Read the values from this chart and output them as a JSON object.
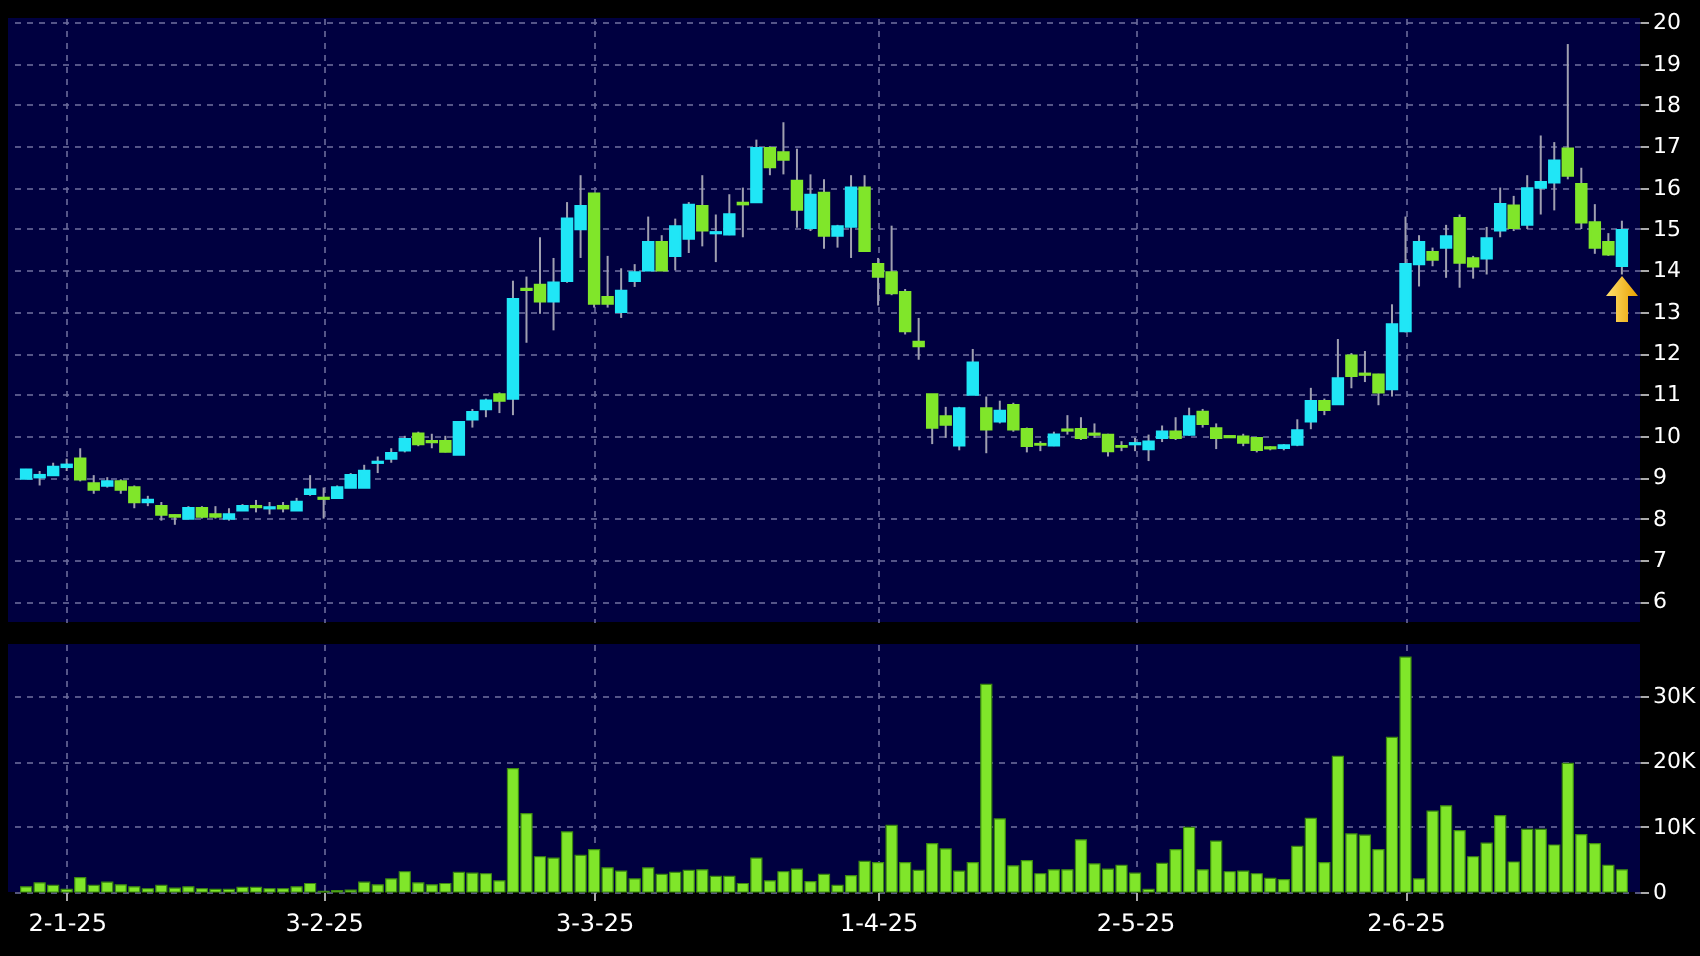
{
  "chart_data": [
    {
      "type": "candlestick",
      "grid": true,
      "tick_labels": "y",
      "ylim": [
        5.5,
        20.1
      ],
      "yticks": [
        6,
        7,
        8,
        9,
        10,
        11,
        12,
        13,
        14,
        15,
        16,
        17,
        18,
        19,
        20
      ],
      "categories": [
        null,
        null,
        null,
        null,
        null,
        null,
        null,
        null,
        null,
        null,
        null,
        null,
        null,
        null,
        null,
        null,
        null,
        null,
        null,
        null,
        null,
        null,
        null,
        null,
        null,
        null,
        null,
        null,
        null,
        null,
        null,
        null,
        null,
        null,
        null,
        null,
        null,
        null,
        null,
        null,
        null,
        null,
        null,
        null,
        null,
        null,
        null,
        null,
        null,
        null,
        null,
        null,
        null,
        null,
        null,
        null,
        null,
        null,
        null,
        null,
        null,
        null,
        null,
        null,
        null,
        null,
        null,
        null,
        null,
        null,
        null,
        null,
        null,
        null,
        null,
        null,
        null,
        null,
        null,
        null,
        null,
        null,
        null,
        null,
        null,
        null,
        null,
        null,
        null,
        null,
        null,
        null,
        null,
        null,
        null,
        null,
        null,
        null,
        null,
        null,
        null,
        null,
        null,
        null,
        null,
        null,
        null,
        null,
        null,
        null,
        null,
        null,
        null,
        null,
        null,
        null,
        null,
        null,
        null
      ],
      "ohlc": [
        [
          8.97,
          9.2,
          8.95,
          9.18
        ],
        [
          9.0,
          9.15,
          8.8,
          9.05
        ],
        [
          9.05,
          9.35,
          9.05,
          9.25
        ],
        [
          9.25,
          9.45,
          9.15,
          9.3
        ],
        [
          9.45,
          9.7,
          8.9,
          8.95
        ],
        [
          8.85,
          9.05,
          8.6,
          8.7
        ],
        [
          8.8,
          9.0,
          8.75,
          8.9
        ],
        [
          8.9,
          8.95,
          8.6,
          8.7
        ],
        [
          8.75,
          8.8,
          8.25,
          8.4
        ],
        [
          8.4,
          8.55,
          8.3,
          8.45
        ],
        [
          8.3,
          8.4,
          7.95,
          8.1
        ],
        [
          8.08,
          8.1,
          7.85,
          8.05
        ],
        [
          8.0,
          8.3,
          8.0,
          8.25
        ],
        [
          8.25,
          8.3,
          8.0,
          8.05
        ],
        [
          8.1,
          8.3,
          8.0,
          8.05
        ],
        [
          8.0,
          8.25,
          7.95,
          8.1
        ],
        [
          8.2,
          8.35,
          8.2,
          8.3
        ],
        [
          8.3,
          8.45,
          8.15,
          8.28
        ],
        [
          8.25,
          8.4,
          8.1,
          8.27
        ],
        [
          8.3,
          8.4,
          8.15,
          8.25
        ],
        [
          8.2,
          8.5,
          8.2,
          8.4
        ],
        [
          8.6,
          9.05,
          8.55,
          8.7
        ],
        [
          8.5,
          8.75,
          8.0,
          8.48
        ],
        [
          8.5,
          8.8,
          8.5,
          8.75
        ],
        [
          8.75,
          9.1,
          8.75,
          9.05
        ],
        [
          8.75,
          9.3,
          8.75,
          9.15
        ],
        [
          9.35,
          9.5,
          9.1,
          9.37
        ],
        [
          9.45,
          9.7,
          9.35,
          9.58
        ],
        [
          9.65,
          10.0,
          9.6,
          9.92
        ],
        [
          10.05,
          10.1,
          9.75,
          9.8
        ],
        [
          9.87,
          10.05,
          9.7,
          9.85
        ],
        [
          9.87,
          10.0,
          9.6,
          9.62
        ],
        [
          9.55,
          10.35,
          9.55,
          10.33
        ],
        [
          10.4,
          10.65,
          10.2,
          10.57
        ],
        [
          10.65,
          10.9,
          10.45,
          10.85
        ],
        [
          11.0,
          11.05,
          10.55,
          10.85
        ],
        [
          10.9,
          13.75,
          10.5,
          13.3
        ],
        [
          13.55,
          13.85,
          12.25,
          13.53
        ],
        [
          13.65,
          14.8,
          12.95,
          13.25
        ],
        [
          13.25,
          14.3,
          12.55,
          13.7
        ],
        [
          13.75,
          15.65,
          13.7,
          15.25
        ],
        [
          15.0,
          16.3,
          14.3,
          15.55
        ],
        [
          15.85,
          15.85,
          13.1,
          13.2
        ],
        [
          13.35,
          14.35,
          13.1,
          13.2
        ],
        [
          13.0,
          14.05,
          12.85,
          13.5
        ],
        [
          13.75,
          14.15,
          13.6,
          13.95
        ],
        [
          14.0,
          15.3,
          14.0,
          14.68
        ],
        [
          14.68,
          14.85,
          14.0,
          14.0
        ],
        [
          14.35,
          15.25,
          14.0,
          15.06
        ],
        [
          14.77,
          15.65,
          14.42,
          15.58
        ],
        [
          15.55,
          16.3,
          14.58,
          14.97
        ],
        [
          14.9,
          15.35,
          14.2,
          14.92
        ],
        [
          14.87,
          15.84,
          14.85,
          15.35
        ],
        [
          15.63,
          16.0,
          14.8,
          15.6
        ],
        [
          15.65,
          17.16,
          15.65,
          16.95
        ],
        [
          16.95,
          17.0,
          16.3,
          16.5
        ],
        [
          16.85,
          17.58,
          16.32,
          16.68
        ],
        [
          16.16,
          16.94,
          15.03,
          15.47
        ],
        [
          15.03,
          16.32,
          14.95,
          15.82
        ],
        [
          15.87,
          16.2,
          14.52,
          14.84
        ],
        [
          14.84,
          15.1,
          14.55,
          15.06
        ],
        [
          15.06,
          16.3,
          14.3,
          16.0
        ],
        [
          16.0,
          16.3,
          14.45,
          14.47
        ],
        [
          14.15,
          14.3,
          13.15,
          13.85
        ],
        [
          13.95,
          15.08,
          13.4,
          13.45
        ],
        [
          13.47,
          13.55,
          12.45,
          12.53
        ],
        [
          12.27,
          12.85,
          11.84,
          12.17
        ],
        [
          11.0,
          11.0,
          9.8,
          10.2
        ],
        [
          10.47,
          10.7,
          9.95,
          10.27
        ],
        [
          9.77,
          10.7,
          9.65,
          10.66
        ],
        [
          11.0,
          12.1,
          11.0,
          11.77
        ],
        [
          10.66,
          10.95,
          9.58,
          10.16
        ],
        [
          10.35,
          10.85,
          10.3,
          10.6
        ],
        [
          10.74,
          10.8,
          10.1,
          10.16
        ],
        [
          10.16,
          10.2,
          9.6,
          9.76
        ],
        [
          9.8,
          9.87,
          9.63,
          9.79
        ],
        [
          9.77,
          10.1,
          9.75,
          10.03
        ],
        [
          10.15,
          10.5,
          10.03,
          10.13
        ],
        [
          10.16,
          10.45,
          9.9,
          9.95
        ],
        [
          10.05,
          10.3,
          9.95,
          10.03
        ],
        [
          10.02,
          10.05,
          9.5,
          9.63
        ],
        [
          9.75,
          9.87,
          9.63,
          9.74
        ],
        [
          9.8,
          9.95,
          9.63,
          9.82
        ],
        [
          9.68,
          10.03,
          9.39,
          9.86
        ],
        [
          9.95,
          10.25,
          9.85,
          10.1
        ],
        [
          10.1,
          10.45,
          9.9,
          9.95
        ],
        [
          10.03,
          10.68,
          10.0,
          10.47
        ],
        [
          10.58,
          10.65,
          10.2,
          10.29
        ],
        [
          10.18,
          10.3,
          9.68,
          9.95
        ],
        [
          9.99,
          10.0,
          9.95,
          9.97
        ],
        [
          9.98,
          10.05,
          9.75,
          9.84
        ],
        [
          9.94,
          9.95,
          9.6,
          9.66
        ],
        [
          9.72,
          9.75,
          9.65,
          9.7
        ],
        [
          9.71,
          9.8,
          9.65,
          9.77
        ],
        [
          9.79,
          10.4,
          9.75,
          10.13
        ],
        [
          10.35,
          11.16,
          10.16,
          10.84
        ],
        [
          10.84,
          10.9,
          10.5,
          10.63
        ],
        [
          10.77,
          12.34,
          10.75,
          11.39
        ],
        [
          11.94,
          12.0,
          11.15,
          11.45
        ],
        [
          11.5,
          12.05,
          11.3,
          11.48
        ],
        [
          11.48,
          11.5,
          10.74,
          11.05
        ],
        [
          11.13,
          13.18,
          10.95,
          12.69
        ],
        [
          12.53,
          15.3,
          12.5,
          14.15
        ],
        [
          14.15,
          14.85,
          13.61,
          14.68
        ],
        [
          14.44,
          14.55,
          14.1,
          14.26
        ],
        [
          14.55,
          15.1,
          13.82,
          14.82
        ],
        [
          15.26,
          15.35,
          13.58,
          14.19
        ],
        [
          14.29,
          14.35,
          13.8,
          14.1
        ],
        [
          14.29,
          15.05,
          13.9,
          14.77
        ],
        [
          14.97,
          16.0,
          14.8,
          15.6
        ],
        [
          15.56,
          15.8,
          14.95,
          15.03
        ],
        [
          15.11,
          16.3,
          15.0,
          15.98
        ],
        [
          16.0,
          17.26,
          15.35,
          16.13
        ],
        [
          16.13,
          17.1,
          15.45,
          16.65
        ],
        [
          16.94,
          19.47,
          16.2,
          16.29
        ],
        [
          16.08,
          16.48,
          15.0,
          15.16
        ],
        [
          15.16,
          15.6,
          14.4,
          14.55
        ],
        [
          14.68,
          14.9,
          14.35,
          14.39
        ],
        [
          14.11,
          15.2,
          13.9,
          14.97
        ]
      ],
      "colors": [
        "#20e6f6",
        "#20e6f6",
        "#20e6f6",
        "#20e6f6",
        "#80e62a",
        "#80e62a",
        "#20e6f6",
        "#80e62a",
        "#80e62a",
        "#20e6f6",
        "#80e62a",
        "#80e62a",
        "#20e6f6",
        "#80e62a",
        "#80e62a",
        "#20e6f6",
        "#20e6f6",
        "#80e62a",
        "#20e6f6",
        "#80e62a",
        "#20e6f6",
        "#20e6f6",
        "#80e62a",
        "#20e6f6",
        "#20e6f6",
        "#20e6f6",
        "#20e6f6",
        "#20e6f6",
        "#20e6f6",
        "#80e62a",
        "#80e62a",
        "#80e62a",
        "#20e6f6",
        "#20e6f6",
        "#20e6f6",
        "#80e62a",
        "#20e6f6",
        "#80e62a",
        "#80e62a",
        "#20e6f6",
        "#20e6f6",
        "#20e6f6",
        "#80e62a",
        "#80e62a",
        "#20e6f6",
        "#20e6f6",
        "#20e6f6",
        "#80e62a",
        "#20e6f6",
        "#20e6f6",
        "#80e62a",
        "#20e6f6",
        "#20e6f6",
        "#80e62a",
        "#20e6f6",
        "#80e62a",
        "#80e62a",
        "#80e62a",
        "#20e6f6",
        "#80e62a",
        "#20e6f6",
        "#20e6f6",
        "#80e62a",
        "#80e62a",
        "#80e62a",
        "#80e62a",
        "#80e62a",
        "#80e62a",
        "#80e62a",
        "#20e6f6",
        "#20e6f6",
        "#80e62a",
        "#20e6f6",
        "#80e62a",
        "#80e62a",
        "#80e62a",
        "#20e6f6",
        "#80e62a",
        "#80e62a",
        "#80e62a",
        "#80e62a",
        "#80e62a",
        "#20e6f6",
        "#20e6f6",
        "#20e6f6",
        "#80e62a",
        "#20e6f6",
        "#80e62a",
        "#80e62a",
        "#80e62a",
        "#80e62a",
        "#80e62a",
        "#80e62a",
        "#20e6f6",
        "#20e6f6",
        "#20e6f6",
        "#80e62a",
        "#20e6f6",
        "#80e62a",
        "#80e62a",
        "#80e62a",
        "#20e6f6",
        "#20e6f6",
        "#20e6f6",
        "#80e62a",
        "#20e6f6",
        "#80e62a",
        "#80e62a",
        "#20e6f6",
        "#20e6f6",
        "#80e62a",
        "#20e6f6",
        "#20e6f6",
        "#20e6f6",
        "#80e62a",
        "#80e62a",
        "#80e62a",
        "#80e62a",
        "#20e6f6"
      ]
    },
    {
      "type": "bar",
      "grid": true,
      "color": "#80e62a",
      "ylim": [
        0,
        38000
      ],
      "yticks": [
        0,
        {
          "value": 10000,
          "label": "10K"
        },
        {
          "value": 20000,
          "label": "20K"
        },
        {
          "value": 30000,
          "label": "30K"
        }
      ],
      "categories": [
        null,
        null,
        null,
        "2-1-25",
        null,
        null,
        null,
        null,
        null,
        null,
        null,
        null,
        null,
        null,
        null,
        null,
        null,
        null,
        null,
        null,
        null,
        null,
        "3-2-25",
        null,
        null,
        null,
        null,
        null,
        null,
        null,
        null,
        null,
        null,
        null,
        null,
        null,
        null,
        null,
        null,
        null,
        null,
        null,
        "3-3-25",
        null,
        null,
        null,
        null,
        null,
        null,
        null,
        null,
        null,
        null,
        null,
        null,
        null,
        null,
        null,
        null,
        null,
        null,
        null,
        null,
        "1-4-25",
        null,
        null,
        null,
        null,
        null,
        null,
        null,
        null,
        null,
        null,
        null,
        null,
        null,
        null,
        null,
        null,
        null,
        null,
        "2-5-25",
        null,
        null,
        null,
        null,
        null,
        null,
        null,
        null,
        null,
        null,
        null,
        null,
        null,
        null,
        null,
        null,
        null,
        null,
        null,
        "2-6-25",
        null,
        null,
        null,
        null,
        null,
        null,
        null,
        null,
        null,
        null,
        null,
        null,
        null,
        null,
        null,
        null
      ],
      "values": [
        800,
        1400,
        1000,
        400,
        2200,
        1000,
        1500,
        1100,
        800,
        500,
        1000,
        600,
        800,
        500,
        400,
        400,
        700,
        700,
        500,
        500,
        800,
        1300,
        100,
        200,
        300,
        1500,
        1100,
        2000,
        3100,
        1400,
        1100,
        1300,
        3000,
        2900,
        2800,
        1700,
        18900,
        12000,
        5400,
        5200,
        9200,
        5600,
        6500,
        3700,
        3200,
        2000,
        3700,
        2700,
        3000,
        3300,
        3400,
        2400,
        2400,
        1300,
        5200,
        1700,
        3100,
        3500,
        1600,
        2700,
        1000,
        2500,
        4700,
        4500,
        10200,
        4500,
        3300,
        7400,
        6600,
        3200,
        4500,
        31800,
        11200,
        4000,
        4800,
        2800,
        3400,
        3400,
        8000,
        4300,
        3500,
        4100,
        2900,
        400,
        4400,
        6500,
        9900,
        3400,
        7800,
        3100,
        3200,
        2800,
        2100,
        1900,
        7000,
        11300,
        4500,
        20800,
        8900,
        8700,
        6500,
        23700,
        36000,
        2000,
        12400,
        13200,
        9400,
        5400,
        7500,
        11700,
        4600,
        9600,
        9600,
        7200,
        19700,
        8800,
        7400,
        4100,
        3400
      ]
    }
  ]
}
